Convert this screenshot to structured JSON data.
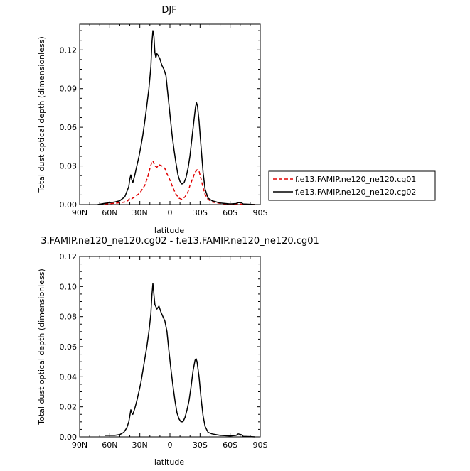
{
  "chart_data": [
    {
      "type": "line",
      "title": "DJF",
      "xlabel": "latitude",
      "ylabel": "Total dust optical depth (dimensionless)",
      "xlim": [
        90,
        -90
      ],
      "ylim": [
        0,
        0.14
      ],
      "x_ticks": [
        90,
        60,
        30,
        0,
        -30,
        -60,
        -90
      ],
      "x_tick_labels": [
        "90N",
        "60N",
        "30N",
        "0",
        "30S",
        "60S",
        "90S"
      ],
      "y_ticks": [
        0,
        0.03,
        0.06,
        0.09,
        0.12
      ],
      "y_tick_labels": [
        "0.00",
        "0.03",
        "0.06",
        "0.09",
        "0.12"
      ],
      "legend_position": "right",
      "series": [
        {
          "name": "f.e13.FAMIP.ne120_ne120.cg01",
          "color": "#e00000",
          "dash": "dashed",
          "points": [
            [
              65,
              0.0005
            ],
            [
              55,
              0.001
            ],
            [
              50,
              0.0015
            ],
            [
              45,
              0.002
            ],
            [
              42,
              0.003
            ],
            [
              40,
              0.005
            ],
            [
              38,
              0.0045
            ],
            [
              35,
              0.006
            ],
            [
              30,
              0.009
            ],
            [
              25,
              0.015
            ],
            [
              22,
              0.022
            ],
            [
              20,
              0.028
            ],
            [
              18,
              0.033
            ],
            [
              17,
              0.034
            ],
            [
              15,
              0.03
            ],
            [
              13,
              0.029
            ],
            [
              11,
              0.031
            ],
            [
              8,
              0.03
            ],
            [
              5,
              0.028
            ],
            [
              3,
              0.024
            ],
            [
              0,
              0.019
            ],
            [
              -3,
              0.013
            ],
            [
              -6,
              0.008
            ],
            [
              -9,
              0.005
            ],
            [
              -12,
              0.004
            ],
            [
              -15,
              0.006
            ],
            [
              -18,
              0.01
            ],
            [
              -20,
              0.015
            ],
            [
              -23,
              0.021
            ],
            [
              -25,
              0.025
            ],
            [
              -27,
              0.027
            ],
            [
              -29,
              0.026
            ],
            [
              -31,
              0.02
            ],
            [
              -33,
              0.013
            ],
            [
              -35,
              0.008
            ],
            [
              -38,
              0.004
            ],
            [
              -42,
              0.002
            ],
            [
              -50,
              0.001
            ],
            [
              -60,
              0.0003
            ],
            [
              -68,
              0.0006
            ],
            [
              -72,
              0.0002
            ],
            [
              -80,
              0.0001
            ],
            [
              -85,
              0.0
            ]
          ]
        },
        {
          "name": "f.e13.FAMIP.ne120_ne120.cg02",
          "color": "#000000",
          "dash": "solid",
          "points": [
            [
              72,
              0.0
            ],
            [
              65,
              0.001
            ],
            [
              55,
              0.002
            ],
            [
              50,
              0.003
            ],
            [
              45,
              0.006
            ],
            [
              43,
              0.01
            ],
            [
              41,
              0.014
            ],
            [
              40,
              0.02
            ],
            [
              39,
              0.023
            ],
            [
              38,
              0.019
            ],
            [
              37,
              0.017
            ],
            [
              35,
              0.023
            ],
            [
              33,
              0.03
            ],
            [
              31,
              0.037
            ],
            [
              29,
              0.045
            ],
            [
              27,
              0.054
            ],
            [
              25,
              0.065
            ],
            [
              23,
              0.077
            ],
            [
              21,
              0.09
            ],
            [
              19,
              0.107
            ],
            [
              18,
              0.125
            ],
            [
              17,
              0.135
            ],
            [
              16,
              0.131
            ],
            [
              15,
              0.118
            ],
            [
              14,
              0.114
            ],
            [
              13,
              0.117
            ],
            [
              12,
              0.116
            ],
            [
              10,
              0.113
            ],
            [
              8,
              0.108
            ],
            [
              6,
              0.105
            ],
            [
              4,
              0.1
            ],
            [
              2,
              0.085
            ],
            [
              0,
              0.07
            ],
            [
              -2,
              0.055
            ],
            [
              -4,
              0.043
            ],
            [
              -6,
              0.032
            ],
            [
              -8,
              0.023
            ],
            [
              -10,
              0.018
            ],
            [
              -12,
              0.016
            ],
            [
              -14,
              0.017
            ],
            [
              -16,
              0.021
            ],
            [
              -18,
              0.028
            ],
            [
              -20,
              0.038
            ],
            [
              -22,
              0.052
            ],
            [
              -24,
              0.066
            ],
            [
              -25.5,
              0.076
            ],
            [
              -26.5,
              0.079
            ],
            [
              -27.5,
              0.076
            ],
            [
              -29,
              0.065
            ],
            [
              -31,
              0.045
            ],
            [
              -33,
              0.025
            ],
            [
              -35,
              0.012
            ],
            [
              -38,
              0.005
            ],
            [
              -42,
              0.003
            ],
            [
              -50,
              0.0012
            ],
            [
              -60,
              0.0005
            ],
            [
              -66,
              0.0008
            ],
            [
              -68,
              0.0015
            ],
            [
              -71,
              0.0015
            ],
            [
              -73,
              0.0005
            ],
            [
              -80,
              0.0002
            ],
            [
              -85,
              0.0
            ]
          ]
        }
      ]
    },
    {
      "type": "line",
      "title": "3.FAMIP.ne120_ne120.cg02 - f.e13.FAMIP.ne120_ne120.cg01",
      "xlabel": "latitude",
      "ylabel": "Total dust optical depth (dimensionless)",
      "xlim": [
        90,
        -90
      ],
      "ylim": [
        0,
        0.12
      ],
      "x_ticks": [
        90,
        60,
        30,
        0,
        -30,
        -60,
        -90
      ],
      "x_tick_labels": [
        "90N",
        "60N",
        "30N",
        "0",
        "30S",
        "60S",
        "90S"
      ],
      "y_ticks": [
        0,
        0.02,
        0.04,
        0.06,
        0.08,
        0.1,
        0.12
      ],
      "y_tick_labels": [
        "0.00",
        "0.02",
        "0.04",
        "0.06",
        "0.08",
        "0.10",
        "0.12"
      ],
      "series": [
        {
          "color": "#000000",
          "dash": "solid",
          "points": [
            [
              65,
              0.001
            ],
            [
              55,
              0.001
            ],
            [
              50,
              0.0015
            ],
            [
              46,
              0.003
            ],
            [
              43,
              0.006
            ],
            [
              41,
              0.01
            ],
            [
              40,
              0.014
            ],
            [
              39,
              0.018
            ],
            [
              38,
              0.016
            ],
            [
              37,
              0.015
            ],
            [
              35,
              0.019
            ],
            [
              33,
              0.024
            ],
            [
              31,
              0.03
            ],
            [
              29,
              0.036
            ],
            [
              27,
              0.044
            ],
            [
              25,
              0.052
            ],
            [
              23,
              0.06
            ],
            [
              21,
              0.07
            ],
            [
              19,
              0.082
            ],
            [
              18,
              0.094
            ],
            [
              17,
              0.102
            ],
            [
              16,
              0.095
            ],
            [
              15,
              0.088
            ],
            [
              13,
              0.085
            ],
            [
              11,
              0.087
            ],
            [
              9,
              0.083
            ],
            [
              7,
              0.08
            ],
            [
              5,
              0.077
            ],
            [
              3,
              0.07
            ],
            [
              1,
              0.057
            ],
            [
              -1,
              0.045
            ],
            [
              -3,
              0.034
            ],
            [
              -5,
              0.024
            ],
            [
              -7,
              0.016
            ],
            [
              -9,
              0.012
            ],
            [
              -11,
              0.01
            ],
            [
              -13,
              0.01
            ],
            [
              -15,
              0.013
            ],
            [
              -17,
              0.018
            ],
            [
              -19,
              0.024
            ],
            [
              -21,
              0.033
            ],
            [
              -23,
              0.044
            ],
            [
              -25,
              0.051
            ],
            [
              -26,
              0.052
            ],
            [
              -27,
              0.05
            ],
            [
              -29,
              0.04
            ],
            [
              -31,
              0.026
            ],
            [
              -33,
              0.014
            ],
            [
              -35,
              0.007
            ],
            [
              -38,
              0.003
            ],
            [
              -42,
              0.002
            ],
            [
              -50,
              0.001
            ],
            [
              -60,
              0.0006
            ],
            [
              -66,
              0.001
            ],
            [
              -68,
              0.002
            ],
            [
              -71,
              0.0015
            ],
            [
              -73,
              0.0004
            ],
            [
              -80,
              0.0002
            ],
            [
              -85,
              0.0
            ]
          ]
        }
      ]
    }
  ]
}
